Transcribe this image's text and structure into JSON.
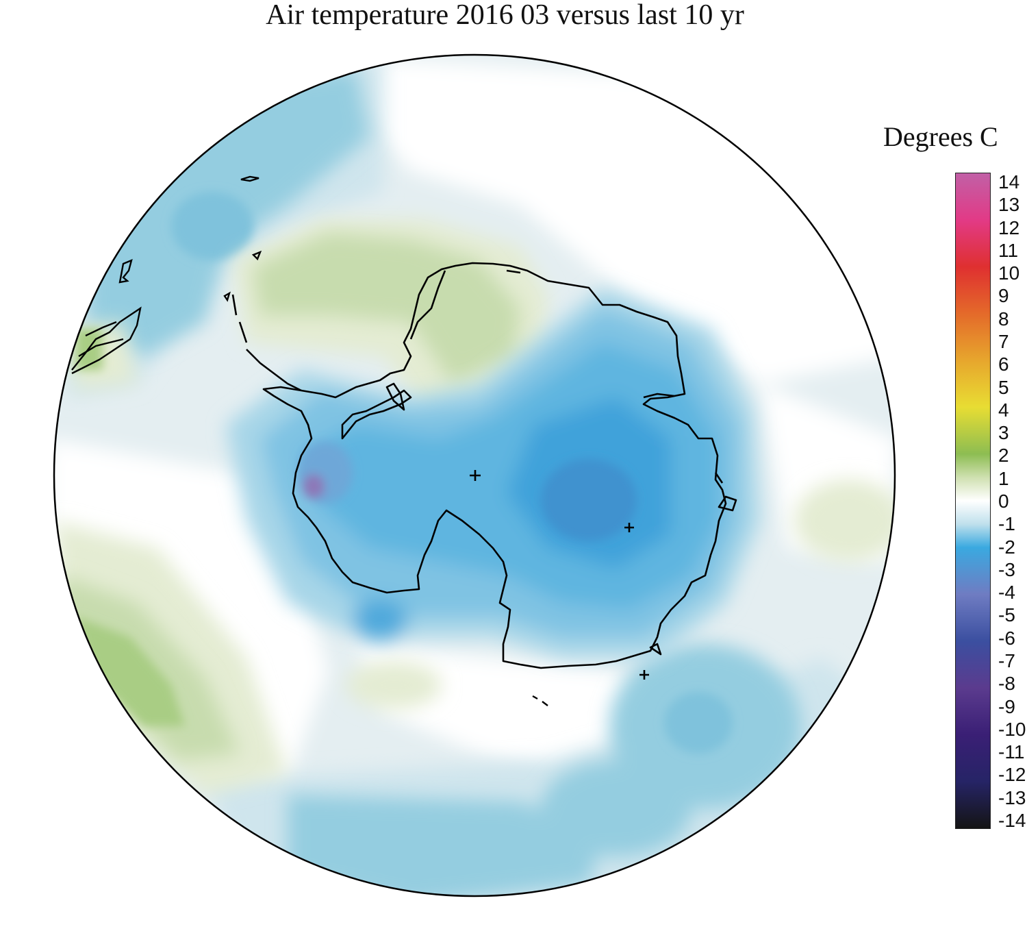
{
  "title": "Air temperature 2016 03 versus last 10 yr",
  "legend": {
    "title": "Degrees C",
    "ticks": [
      "14",
      "13",
      "12",
      "11",
      "10",
      "9",
      "8",
      "7",
      "6",
      "5",
      "4",
      "3",
      "2",
      "1",
      "0",
      "-1",
      "-2",
      "-3",
      "-4",
      "-5",
      "-6",
      "-7",
      "-8",
      "-9",
      "-10",
      "-11",
      "-12",
      "-13",
      "-14"
    ],
    "range": [
      -14,
      14
    ],
    "stops": [
      {
        "value": 14,
        "color": "#c160a6"
      },
      {
        "value": 12,
        "color": "#e23a86"
      },
      {
        "value": 10,
        "color": "#df3030"
      },
      {
        "value": 8,
        "color": "#e46a2a"
      },
      {
        "value": 6,
        "color": "#e7a62d"
      },
      {
        "value": 4,
        "color": "#e8dd33"
      },
      {
        "value": 2,
        "color": "#8dbd52"
      },
      {
        "value": 1,
        "color": "#cfe0b0"
      },
      {
        "value": 0,
        "color": "#ffffff"
      },
      {
        "value": -1,
        "color": "#bfe0ec"
      },
      {
        "value": -2,
        "color": "#3aa9e0"
      },
      {
        "value": -4,
        "color": "#6f7cc2"
      },
      {
        "value": -6,
        "color": "#3b4fa0"
      },
      {
        "value": -8,
        "color": "#5b3b8e"
      },
      {
        "value": -10,
        "color": "#3a1f75"
      },
      {
        "value": -12,
        "color": "#262466"
      },
      {
        "value": -14,
        "color": "#141414"
      }
    ]
  },
  "map": {
    "projection": "south-polar-stereographic",
    "colors": {
      "light_blue": "#cfe5ed",
      "mid_blue": "#94cde0",
      "blue": "#5fb5e0",
      "deep_blue": "#3f9fd6",
      "light_green": "#e4ecd3",
      "green": "#c7dcae",
      "bright_green": "#a9cd84",
      "purple": "#8d78b8",
      "coast": "#000000",
      "outline": "#000000"
    }
  }
}
